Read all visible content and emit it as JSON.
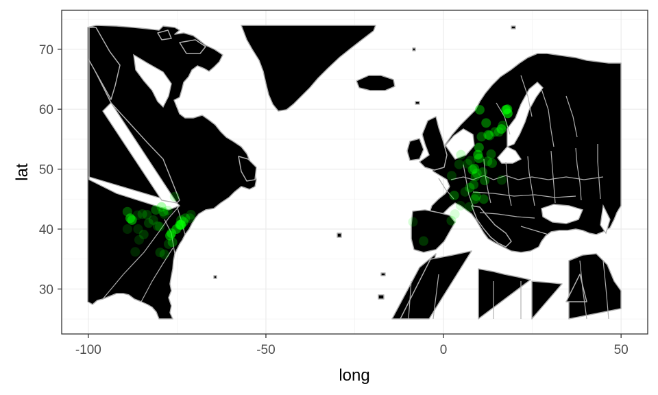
{
  "chart_data": {
    "type": "scatter",
    "xlabel": "long",
    "ylabel": "lat",
    "xlim": [
      -107.5,
      57.5
    ],
    "ylim": [
      22.5,
      76.5
    ],
    "x_ticks": [
      -100,
      -50,
      0,
      50
    ],
    "x_tick_labels": [
      "-100",
      "-50",
      "0",
      "50"
    ],
    "y_ticks": [
      30,
      40,
      50,
      60,
      70
    ],
    "y_tick_labels": [
      "30",
      "40",
      "50",
      "60",
      "70"
    ],
    "grid": true,
    "background": "#ffffff",
    "land_color": "#000000",
    "border_color": "#b0b0b0",
    "point_color": "#00ff00",
    "points": [
      {
        "x": -89.0,
        "y": 42.9,
        "alpha": 0.3
      },
      {
        "x": -88.2,
        "y": 41.8,
        "alpha": 0.5
      },
      {
        "x": -87.7,
        "y": 41.5,
        "alpha": 0.5
      },
      {
        "x": -89.0,
        "y": 40.0,
        "alpha": 0.15
      },
      {
        "x": -86.0,
        "y": 40.0,
        "alpha": 0.15
      },
      {
        "x": -86.2,
        "y": 42.3,
        "alpha": 0.15
      },
      {
        "x": -84.8,
        "y": 42.5,
        "alpha": 0.2
      },
      {
        "x": -83.5,
        "y": 42.4,
        "alpha": 0.2
      },
      {
        "x": -83.0,
        "y": 41.0,
        "alpha": 0.2
      },
      {
        "x": -81.7,
        "y": 41.5,
        "alpha": 0.2
      },
      {
        "x": -81.0,
        "y": 43.2,
        "alpha": 0.3
      },
      {
        "x": -80.5,
        "y": 40.5,
        "alpha": 0.2
      },
      {
        "x": -79.9,
        "y": 40.4,
        "alpha": 0.2
      },
      {
        "x": -79.4,
        "y": 43.7,
        "alpha": 0.3
      },
      {
        "x": -78.9,
        "y": 42.9,
        "alpha": 0.3
      },
      {
        "x": -78.6,
        "y": 42.5,
        "alpha": 0.2
      },
      {
        "x": -77.6,
        "y": 43.1,
        "alpha": 0.2
      },
      {
        "x": -77.0,
        "y": 38.9,
        "alpha": 0.5
      },
      {
        "x": -76.6,
        "y": 39.3,
        "alpha": 0.5
      },
      {
        "x": -76.3,
        "y": 37.8,
        "alpha": 0.3
      },
      {
        "x": -77.4,
        "y": 37.5,
        "alpha": 0.2
      },
      {
        "x": -75.2,
        "y": 40.0,
        "alpha": 0.5
      },
      {
        "x": -74.2,
        "y": 40.7,
        "alpha": 0.6
      },
      {
        "x": -73.9,
        "y": 40.7,
        "alpha": 0.7
      },
      {
        "x": -73.9,
        "y": 41.5,
        "alpha": 0.3
      },
      {
        "x": -73.2,
        "y": 41.2,
        "alpha": 0.4
      },
      {
        "x": -72.7,
        "y": 41.8,
        "alpha": 0.3
      },
      {
        "x": -71.1,
        "y": 42.4,
        "alpha": 0.2
      },
      {
        "x": -71.4,
        "y": 41.8,
        "alpha": 0.2
      },
      {
        "x": -75.7,
        "y": 45.4,
        "alpha": 0.2
      },
      {
        "x": -79.8,
        "y": 36.1,
        "alpha": 0.2
      },
      {
        "x": -78.6,
        "y": 35.8,
        "alpha": 0.2
      },
      {
        "x": -84.4,
        "y": 39.1,
        "alpha": 0.2
      },
      {
        "x": -85.7,
        "y": 38.2,
        "alpha": 0.15
      },
      {
        "x": -86.8,
        "y": 36.2,
        "alpha": 0.15
      },
      {
        "x": -5.6,
        "y": 38.0,
        "alpha": 0.2
      },
      {
        "x": 2.3,
        "y": 48.9,
        "alpha": 0.2
      },
      {
        "x": 3.0,
        "y": 45.6,
        "alpha": 0.3
      },
      {
        "x": 3.2,
        "y": 42.5,
        "alpha": 0.15
      },
      {
        "x": 4.4,
        "y": 50.8,
        "alpha": 0.2
      },
      {
        "x": 4.9,
        "y": 52.4,
        "alpha": 0.2
      },
      {
        "x": 6.1,
        "y": 46.2,
        "alpha": 0.2
      },
      {
        "x": 6.8,
        "y": 50.9,
        "alpha": 0.2
      },
      {
        "x": 7.4,
        "y": 46.9,
        "alpha": 0.3
      },
      {
        "x": 7.6,
        "y": 51.4,
        "alpha": 0.2
      },
      {
        "x": 8.2,
        "y": 49.9,
        "alpha": 0.4
      },
      {
        "x": 8.5,
        "y": 47.4,
        "alpha": 0.3
      },
      {
        "x": 8.7,
        "y": 50.1,
        "alpha": 0.4
      },
      {
        "x": 8.8,
        "y": 45.0,
        "alpha": 0.3
      },
      {
        "x": 9.2,
        "y": 45.5,
        "alpha": 0.3
      },
      {
        "x": 9.0,
        "y": 48.8,
        "alpha": 0.3
      },
      {
        "x": 9.4,
        "y": 49.3,
        "alpha": 0.3
      },
      {
        "x": 9.7,
        "y": 52.4,
        "alpha": 0.5
      },
      {
        "x": 10.0,
        "y": 53.6,
        "alpha": 0.4
      },
      {
        "x": 10.0,
        "y": 51.8,
        "alpha": 0.4
      },
      {
        "x": 10.2,
        "y": 59.9,
        "alpha": 0.4
      },
      {
        "x": 10.7,
        "y": 55.4,
        "alpha": 0.3
      },
      {
        "x": 11.0,
        "y": 49.5,
        "alpha": 0.3
      },
      {
        "x": 11.3,
        "y": 45.0,
        "alpha": 0.3
      },
      {
        "x": 11.6,
        "y": 48.1,
        "alpha": 0.3
      },
      {
        "x": 12.0,
        "y": 57.7,
        "alpha": 0.4
      },
      {
        "x": 12.4,
        "y": 51.3,
        "alpha": 0.3
      },
      {
        "x": 12.6,
        "y": 55.7,
        "alpha": 0.4
      },
      {
        "x": 13.4,
        "y": 52.5,
        "alpha": 0.3
      },
      {
        "x": 13.0,
        "y": 55.6,
        "alpha": 0.3
      },
      {
        "x": 13.7,
        "y": 51.0,
        "alpha": 0.3
      },
      {
        "x": 14.5,
        "y": 56.2,
        "alpha": 0.3
      },
      {
        "x": 15.6,
        "y": 56.2,
        "alpha": 0.3
      },
      {
        "x": 16.4,
        "y": 48.2,
        "alpha": 0.2
      },
      {
        "x": 16.3,
        "y": 56.7,
        "alpha": 0.5
      },
      {
        "x": 17.6,
        "y": 59.9,
        "alpha": 0.6
      },
      {
        "x": 18.1,
        "y": 59.3,
        "alpha": 0.6
      },
      {
        "x": 18.0,
        "y": 60.0,
        "alpha": 0.5
      },
      {
        "x": 16.7,
        "y": 57.3,
        "alpha": 0.3
      },
      {
        "x": -8.6,
        "y": 41.2,
        "alpha": 0.15
      },
      {
        "x": 2.2,
        "y": 41.4,
        "alpha": 0.2
      },
      {
        "x": 4.8,
        "y": 43.9,
        "alpha": 0.15
      },
      {
        "x": 7.3,
        "y": 43.7,
        "alpha": 0.2
      }
    ]
  }
}
